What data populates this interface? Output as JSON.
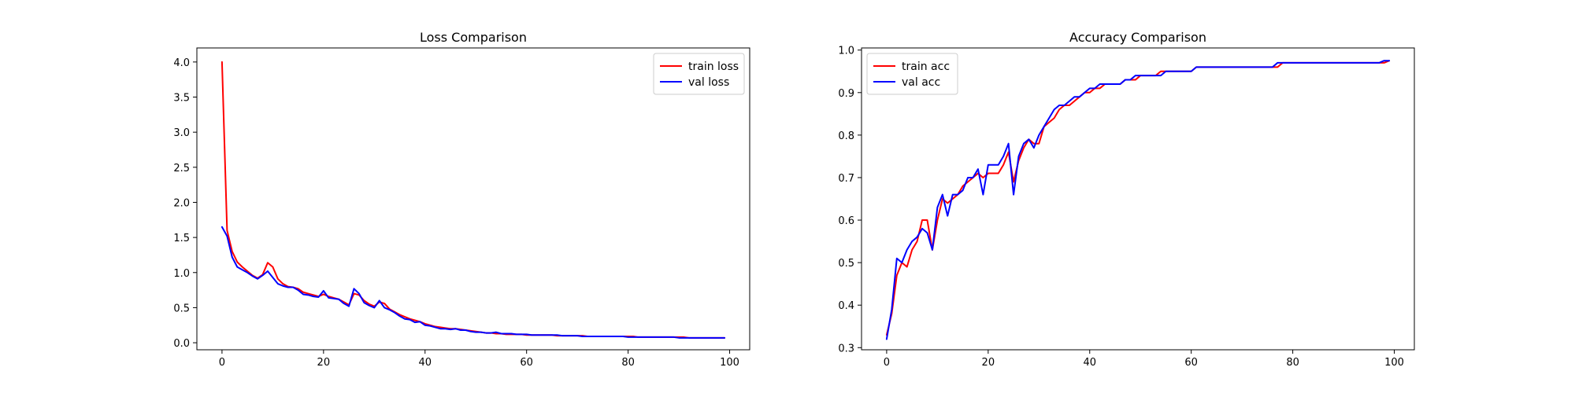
{
  "chart_data": [
    {
      "type": "line",
      "title": "Loss Comparison",
      "xlabel": "",
      "ylabel": "",
      "xlim": [
        -4.95,
        103.95
      ],
      "ylim": [
        -0.1,
        4.2
      ],
      "xticks": [
        0,
        20,
        40,
        60,
        80,
        100
      ],
      "yticks": [
        0.0,
        0.5,
        1.0,
        1.5,
        2.0,
        2.5,
        3.0,
        3.5,
        4.0
      ],
      "legend": "top-right",
      "series": [
        {
          "name": "train loss",
          "color": "#ff0000",
          "x": [
            0,
            1,
            2,
            3,
            4,
            5,
            6,
            7,
            8,
            9,
            10,
            11,
            12,
            13,
            14,
            15,
            16,
            17,
            18,
            19,
            20,
            21,
            22,
            23,
            24,
            25,
            26,
            27,
            28,
            29,
            30,
            31,
            32,
            33,
            34,
            35,
            36,
            37,
            38,
            39,
            40,
            41,
            42,
            43,
            44,
            45,
            46,
            47,
            48,
            49,
            50,
            51,
            52,
            53,
            54,
            55,
            56,
            57,
            58,
            59,
            60,
            61,
            62,
            63,
            64,
            65,
            66,
            67,
            68,
            69,
            70,
            71,
            72,
            73,
            74,
            75,
            76,
            77,
            78,
            79,
            80,
            81,
            82,
            83,
            84,
            85,
            86,
            87,
            88,
            89,
            90,
            91,
            92,
            93,
            94,
            95,
            96,
            97,
            98,
            99
          ],
          "y": [
            4.0,
            1.6,
            1.3,
            1.15,
            1.08,
            1.02,
            0.96,
            0.92,
            0.97,
            1.14,
            1.08,
            0.91,
            0.84,
            0.8,
            0.79,
            0.77,
            0.72,
            0.7,
            0.68,
            0.66,
            0.69,
            0.66,
            0.64,
            0.62,
            0.58,
            0.54,
            0.7,
            0.68,
            0.6,
            0.55,
            0.52,
            0.58,
            0.56,
            0.48,
            0.44,
            0.4,
            0.37,
            0.34,
            0.32,
            0.3,
            0.27,
            0.25,
            0.23,
            0.22,
            0.21,
            0.2,
            0.2,
            0.19,
            0.18,
            0.17,
            0.16,
            0.15,
            0.14,
            0.14,
            0.13,
            0.13,
            0.12,
            0.12,
            0.12,
            0.12,
            0.11,
            0.11,
            0.11,
            0.11,
            0.11,
            0.11,
            0.1,
            0.1,
            0.1,
            0.1,
            0.1,
            0.1,
            0.09,
            0.09,
            0.09,
            0.09,
            0.09,
            0.09,
            0.09,
            0.09,
            0.09,
            0.09,
            0.08,
            0.08,
            0.08,
            0.08,
            0.08,
            0.08,
            0.08,
            0.08,
            0.08,
            0.08,
            0.07,
            0.07,
            0.07,
            0.07,
            0.07,
            0.07,
            0.07,
            0.07
          ]
        },
        {
          "name": "val loss",
          "color": "#0000ff",
          "x": [
            0,
            1,
            2,
            3,
            4,
            5,
            6,
            7,
            8,
            9,
            10,
            11,
            12,
            13,
            14,
            15,
            16,
            17,
            18,
            19,
            20,
            21,
            22,
            23,
            24,
            25,
            26,
            27,
            28,
            29,
            30,
            31,
            32,
            33,
            34,
            35,
            36,
            37,
            38,
            39,
            40,
            41,
            42,
            43,
            44,
            45,
            46,
            47,
            48,
            49,
            50,
            51,
            52,
            53,
            54,
            55,
            56,
            57,
            58,
            59,
            60,
            61,
            62,
            63,
            64,
            65,
            66,
            67,
            68,
            69,
            70,
            71,
            72,
            73,
            74,
            75,
            76,
            77,
            78,
            79,
            80,
            81,
            82,
            83,
            84,
            85,
            86,
            87,
            88,
            89,
            90,
            91,
            92,
            93,
            94,
            95,
            96,
            97,
            98,
            99
          ],
          "y": [
            1.65,
            1.52,
            1.22,
            1.08,
            1.04,
            1.0,
            0.95,
            0.91,
            0.96,
            1.02,
            0.93,
            0.84,
            0.81,
            0.79,
            0.79,
            0.75,
            0.69,
            0.68,
            0.66,
            0.65,
            0.74,
            0.64,
            0.63,
            0.62,
            0.56,
            0.52,
            0.77,
            0.7,
            0.57,
            0.53,
            0.5,
            0.6,
            0.5,
            0.47,
            0.43,
            0.38,
            0.34,
            0.33,
            0.29,
            0.3,
            0.25,
            0.24,
            0.22,
            0.2,
            0.2,
            0.19,
            0.2,
            0.18,
            0.18,
            0.16,
            0.15,
            0.15,
            0.14,
            0.14,
            0.15,
            0.13,
            0.13,
            0.13,
            0.12,
            0.12,
            0.12,
            0.11,
            0.11,
            0.11,
            0.11,
            0.11,
            0.11,
            0.1,
            0.1,
            0.1,
            0.1,
            0.09,
            0.09,
            0.09,
            0.09,
            0.09,
            0.09,
            0.09,
            0.09,
            0.09,
            0.08,
            0.08,
            0.08,
            0.08,
            0.08,
            0.08,
            0.08,
            0.08,
            0.08,
            0.08,
            0.07,
            0.07,
            0.07,
            0.07,
            0.07,
            0.07,
            0.07,
            0.07,
            0.07,
            0.07
          ]
        }
      ]
    },
    {
      "type": "line",
      "title": "Accuracy Comparison",
      "xlabel": "",
      "ylabel": "",
      "xlim": [
        -4.95,
        103.95
      ],
      "ylim": [
        0.295,
        1.005
      ],
      "xticks": [
        0,
        20,
        40,
        60,
        80,
        100
      ],
      "yticks": [
        0.3,
        0.4,
        0.5,
        0.6,
        0.7,
        0.8,
        0.9,
        1.0
      ],
      "legend": "top-left",
      "series": [
        {
          "name": "train acc",
          "color": "#ff0000",
          "x": [
            0,
            1,
            2,
            3,
            4,
            5,
            6,
            7,
            8,
            9,
            10,
            11,
            12,
            13,
            14,
            15,
            16,
            17,
            18,
            19,
            20,
            21,
            22,
            23,
            24,
            25,
            26,
            27,
            28,
            29,
            30,
            31,
            32,
            33,
            34,
            35,
            36,
            37,
            38,
            39,
            40,
            41,
            42,
            43,
            44,
            45,
            46,
            47,
            48,
            49,
            50,
            51,
            52,
            53,
            54,
            55,
            56,
            57,
            58,
            59,
            60,
            61,
            62,
            63,
            64,
            65,
            66,
            67,
            68,
            69,
            70,
            71,
            72,
            73,
            74,
            75,
            76,
            77,
            78,
            79,
            80,
            81,
            82,
            83,
            84,
            85,
            86,
            87,
            88,
            89,
            90,
            91,
            92,
            93,
            94,
            95,
            96,
            97,
            98,
            99
          ],
          "y": [
            0.33,
            0.38,
            0.47,
            0.5,
            0.49,
            0.53,
            0.55,
            0.6,
            0.6,
            0.53,
            0.6,
            0.65,
            0.64,
            0.65,
            0.66,
            0.68,
            0.69,
            0.7,
            0.71,
            0.7,
            0.71,
            0.71,
            0.71,
            0.73,
            0.76,
            0.69,
            0.74,
            0.77,
            0.79,
            0.78,
            0.78,
            0.82,
            0.83,
            0.84,
            0.86,
            0.87,
            0.87,
            0.88,
            0.89,
            0.9,
            0.9,
            0.91,
            0.91,
            0.92,
            0.92,
            0.92,
            0.92,
            0.93,
            0.93,
            0.93,
            0.94,
            0.94,
            0.94,
            0.94,
            0.95,
            0.95,
            0.95,
            0.95,
            0.95,
            0.95,
            0.95,
            0.96,
            0.96,
            0.96,
            0.96,
            0.96,
            0.96,
            0.96,
            0.96,
            0.96,
            0.96,
            0.96,
            0.96,
            0.96,
            0.96,
            0.96,
            0.96,
            0.96,
            0.97,
            0.97,
            0.97,
            0.97,
            0.97,
            0.97,
            0.97,
            0.97,
            0.97,
            0.97,
            0.97,
            0.97,
            0.97,
            0.97,
            0.97,
            0.97,
            0.97,
            0.97,
            0.97,
            0.97,
            0.97,
            0.975
          ]
        },
        {
          "name": "val acc",
          "color": "#0000ff",
          "x": [
            0,
            1,
            2,
            3,
            4,
            5,
            6,
            7,
            8,
            9,
            10,
            11,
            12,
            13,
            14,
            15,
            16,
            17,
            18,
            19,
            20,
            21,
            22,
            23,
            24,
            25,
            26,
            27,
            28,
            29,
            30,
            31,
            32,
            33,
            34,
            35,
            36,
            37,
            38,
            39,
            40,
            41,
            42,
            43,
            44,
            45,
            46,
            47,
            48,
            49,
            50,
            51,
            52,
            53,
            54,
            55,
            56,
            57,
            58,
            59,
            60,
            61,
            62,
            63,
            64,
            65,
            66,
            67,
            68,
            69,
            70,
            71,
            72,
            73,
            74,
            75,
            76,
            77,
            78,
            79,
            80,
            81,
            82,
            83,
            84,
            85,
            86,
            87,
            88,
            89,
            90,
            91,
            92,
            93,
            94,
            95,
            96,
            97,
            98,
            99
          ],
          "y": [
            0.32,
            0.39,
            0.51,
            0.5,
            0.53,
            0.55,
            0.56,
            0.58,
            0.57,
            0.53,
            0.63,
            0.66,
            0.61,
            0.66,
            0.66,
            0.67,
            0.7,
            0.7,
            0.72,
            0.66,
            0.73,
            0.73,
            0.73,
            0.75,
            0.78,
            0.66,
            0.75,
            0.78,
            0.79,
            0.77,
            0.8,
            0.82,
            0.84,
            0.86,
            0.87,
            0.87,
            0.88,
            0.89,
            0.89,
            0.9,
            0.91,
            0.91,
            0.92,
            0.92,
            0.92,
            0.92,
            0.92,
            0.93,
            0.93,
            0.94,
            0.94,
            0.94,
            0.94,
            0.94,
            0.94,
            0.95,
            0.95,
            0.95,
            0.95,
            0.95,
            0.95,
            0.96,
            0.96,
            0.96,
            0.96,
            0.96,
            0.96,
            0.96,
            0.96,
            0.96,
            0.96,
            0.96,
            0.96,
            0.96,
            0.96,
            0.96,
            0.96,
            0.97,
            0.97,
            0.97,
            0.97,
            0.97,
            0.97,
            0.97,
            0.97,
            0.97,
            0.97,
            0.97,
            0.97,
            0.97,
            0.97,
            0.97,
            0.97,
            0.97,
            0.97,
            0.97,
            0.97,
            0.97,
            0.975,
            0.975
          ]
        }
      ]
    }
  ]
}
